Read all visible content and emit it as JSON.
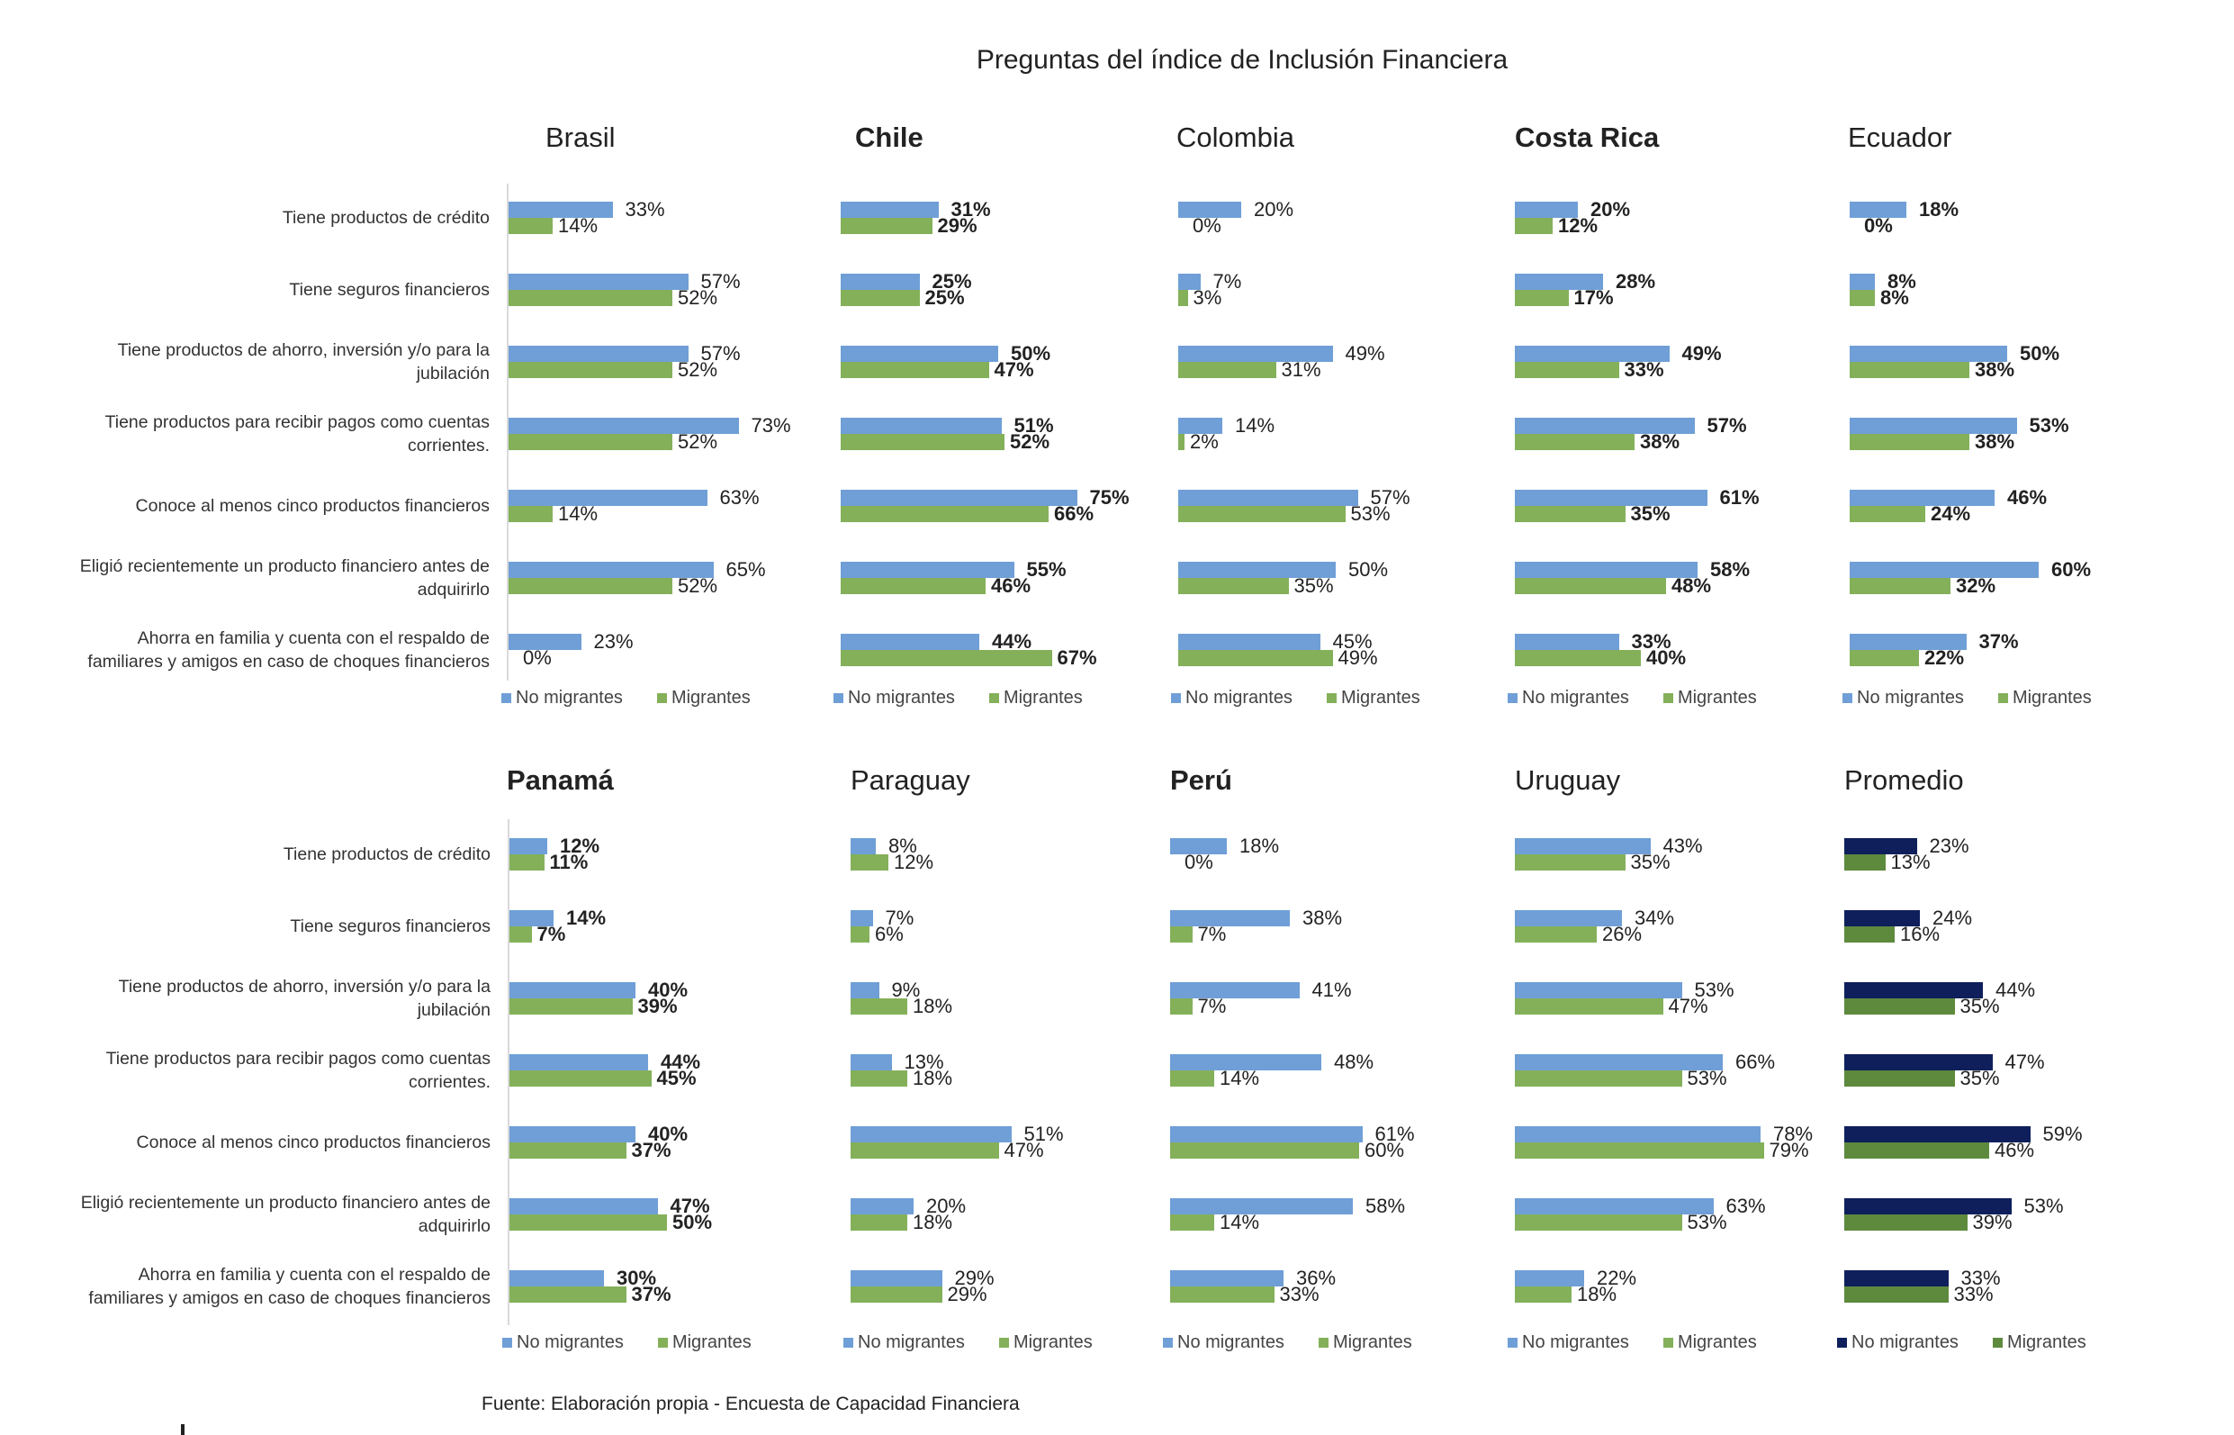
{
  "title": "Preguntas del índice de Inclusión Financiera",
  "source": "Fuente: Elaboración propia - Encuesta de Capacidad Financiera",
  "categories": [
    "Tiene productos de crédito",
    "Tiene seguros financieros",
    "Tiene productos de ahorro, inversión y/o para la jubilación",
    "Tiene productos para recibir pagos como cuentas corrientes.",
    "Conoce al menos cinco productos financieros",
    "Eligió recientemente un producto financiero antes de adquirirlo",
    "Ahorra en familia y cuenta con el respaldo de familiares y amigos en caso de choques financieros"
  ],
  "colors": {
    "no_migrantes": "#6f9fd6",
    "migrantes": "#84b05a",
    "promedio_no_migrantes": "#0e1f5b",
    "promedio_migrantes": "#5e8a3e"
  },
  "chart_data": [
    {
      "type": "bar",
      "title": "Brasil",
      "xlim": [
        0,
        100
      ],
      "unit": "%",
      "series": [
        {
          "name": "No migrantes",
          "values": [
            33,
            57,
            57,
            73,
            63,
            65,
            23
          ]
        },
        {
          "name": "Migrantes",
          "values": [
            14,
            52,
            52,
            52,
            14,
            52,
            0
          ]
        }
      ]
    },
    {
      "type": "bar",
      "title": "Chile",
      "xlim": [
        0,
        100
      ],
      "unit": "%",
      "series": [
        {
          "name": "No migrantes",
          "values": [
            31,
            25,
            50,
            51,
            75,
            55,
            44
          ]
        },
        {
          "name": "Migrantes",
          "values": [
            29,
            25,
            47,
            52,
            66,
            46,
            67
          ]
        }
      ]
    },
    {
      "type": "bar",
      "title": "Colombia",
      "xlim": [
        0,
        100
      ],
      "unit": "%",
      "series": [
        {
          "name": "No migrantes",
          "values": [
            20,
            7,
            49,
            14,
            57,
            50,
            45
          ]
        },
        {
          "name": "Migrantes",
          "values": [
            0,
            3,
            31,
            2,
            53,
            35,
            49
          ]
        }
      ]
    },
    {
      "type": "bar",
      "title": "Costa Rica",
      "xlim": [
        0,
        100
      ],
      "unit": "%",
      "series": [
        {
          "name": "No migrantes",
          "values": [
            20,
            28,
            49,
            57,
            61,
            58,
            33
          ]
        },
        {
          "name": "Migrantes",
          "values": [
            12,
            17,
            33,
            38,
            35,
            48,
            40
          ]
        }
      ]
    },
    {
      "type": "bar",
      "title": "Ecuador",
      "xlim": [
        0,
        100
      ],
      "unit": "%",
      "series": [
        {
          "name": "No migrantes",
          "values": [
            18,
            8,
            50,
            53,
            46,
            60,
            37
          ]
        },
        {
          "name": "Migrantes",
          "values": [
            0,
            8,
            38,
            38,
            24,
            32,
            22
          ]
        }
      ]
    },
    {
      "type": "bar",
      "title": "Panamá",
      "xlim": [
        0,
        100
      ],
      "unit": "%",
      "series": [
        {
          "name": "No migrantes",
          "values": [
            12,
            14,
            40,
            44,
            40,
            47,
            30
          ]
        },
        {
          "name": "Migrantes",
          "values": [
            11,
            7,
            39,
            45,
            37,
            50,
            37
          ]
        }
      ]
    },
    {
      "type": "bar",
      "title": "Paraguay",
      "xlim": [
        0,
        100
      ],
      "unit": "%",
      "series": [
        {
          "name": "No migrantes",
          "values": [
            8,
            7,
            9,
            13,
            51,
            20,
            29
          ]
        },
        {
          "name": "Migrantes",
          "values": [
            12,
            6,
            18,
            18,
            47,
            18,
            29
          ]
        }
      ]
    },
    {
      "type": "bar",
      "title": "Perú",
      "xlim": [
        0,
        100
      ],
      "unit": "%",
      "series": [
        {
          "name": "No migrantes",
          "values": [
            18,
            38,
            41,
            48,
            61,
            58,
            36
          ]
        },
        {
          "name": "Migrantes",
          "values": [
            0,
            7,
            7,
            14,
            60,
            14,
            33
          ]
        }
      ]
    },
    {
      "type": "bar",
      "title": "Uruguay",
      "xlim": [
        0,
        100
      ],
      "unit": "%",
      "series": [
        {
          "name": "No migrantes",
          "values": [
            43,
            34,
            53,
            66,
            78,
            63,
            22
          ]
        },
        {
          "name": "Migrantes",
          "values": [
            35,
            26,
            47,
            53,
            79,
            53,
            18
          ]
        }
      ]
    },
    {
      "type": "bar",
      "title": "Promedio",
      "xlim": [
        0,
        100
      ],
      "unit": "%",
      "series": [
        {
          "name": "No migrantes",
          "values": [
            23,
            24,
            44,
            47,
            59,
            53,
            33
          ]
        },
        {
          "name": "Migrantes",
          "values": [
            13,
            16,
            35,
            35,
            46,
            39,
            33
          ]
        }
      ]
    }
  ]
}
